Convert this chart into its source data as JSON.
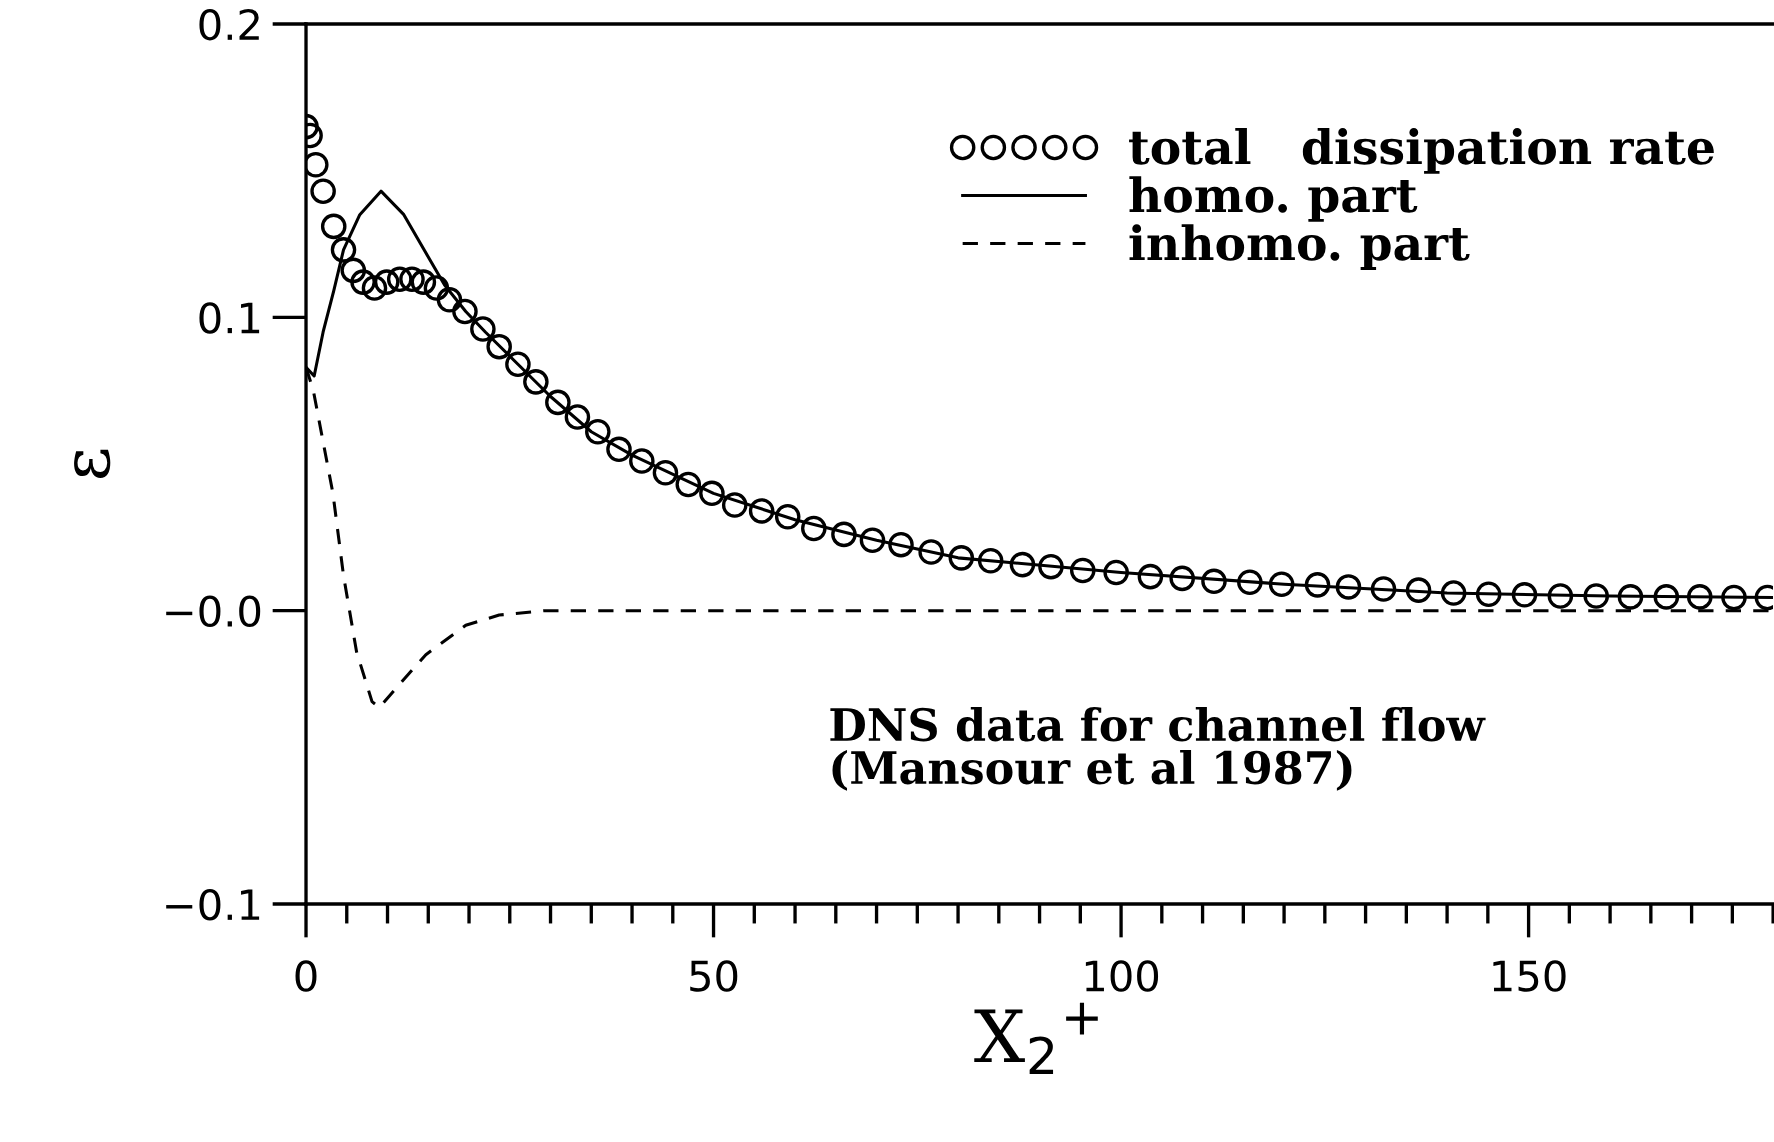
{
  "chart_data": {
    "type": "line",
    "xlabel": "X$_{2}$$^{+}$",
    "ylabel": "ε",
    "xlim": [
      0,
      180
    ],
    "xticks": [
      0,
      50,
      100,
      150
    ],
    "ylim": [
      -0.1,
      0.2
    ],
    "yticks": [
      {
        "value": -0.1,
        "label": "−0.1"
      },
      {
        "value": 0,
        "label": "−0.0"
      },
      0.1,
      0.2
    ],
    "legend": "top right",
    "grid": false,
    "annotations": [
      "DNS data for channel flow\n(Mansour et al 1987)"
    ],
    "series": [
      {
        "name": "total   dissipation rate",
        "type": "scatter",
        "marker": "circle",
        "color": "#000000",
        "x": [
          0,
          0.5,
          1.2,
          2.1,
          3.4,
          4.6,
          5.8,
          7.0,
          8.4,
          9.9,
          11.5,
          13.0,
          14.4,
          16.0,
          17.6,
          19.5,
          21.7,
          23.7,
          26.0,
          28.2,
          30.9,
          33.3,
          35.8,
          38.4,
          41.2,
          44.1,
          46.9,
          49.8,
          52.6,
          55.9,
          59.1,
          62.3,
          66.0,
          69.5,
          73.0,
          76.7,
          80.4,
          84.0,
          87.9,
          91.4,
          95.3,
          99.4,
          103.6,
          107.5,
          111.4,
          115.8,
          119.7,
          124.1,
          127.9,
          132.2,
          136.5,
          140.8,
          145.1,
          149.5,
          153.9,
          158.3,
          162.5,
          166.9,
          171.0,
          175.2,
          179.3
        ],
        "values": [
          0.165,
          0.162,
          0.152,
          0.143,
          0.131,
          0.123,
          0.116,
          0.112,
          0.11,
          0.112,
          0.113,
          0.113,
          0.112,
          0.11,
          0.106,
          0.102,
          0.096,
          0.09,
          0.084,
          0.078,
          0.071,
          0.066,
          0.061,
          0.055,
          0.051,
          0.047,
          0.043,
          0.04,
          0.036,
          0.034,
          0.032,
          0.028,
          0.026,
          0.024,
          0.0225,
          0.02,
          0.018,
          0.017,
          0.0157,
          0.015,
          0.0137,
          0.013,
          0.0116,
          0.011,
          0.01,
          0.0097,
          0.009,
          0.0088,
          0.0081,
          0.0074,
          0.007,
          0.006,
          0.0056,
          0.0054,
          0.005,
          0.005,
          0.0047,
          0.0047,
          0.0047,
          0.0045,
          0.0045
        ]
      },
      {
        "name": "homo. part",
        "type": "line",
        "line_style": "solid",
        "color": "#000000",
        "x": [
          0,
          1,
          2.1,
          3.4,
          4.6,
          6.6,
          9.2,
          12,
          14.7,
          17,
          19.6,
          22,
          26,
          30,
          35,
          40,
          50,
          60,
          70,
          80,
          100,
          120,
          140,
          160,
          180
        ],
        "values": [
          0.083,
          0.08,
          0.095,
          0.109,
          0.123,
          0.135,
          0.143,
          0.135,
          0.122,
          0.111,
          0.102,
          0.095,
          0.084,
          0.073,
          0.061,
          0.053,
          0.04,
          0.031,
          0.024,
          0.018,
          0.013,
          0.009,
          0.006,
          0.005,
          0.0045
        ]
      },
      {
        "name": "inhomo. part",
        "type": "line",
        "line_style": "dashed",
        "color": "#000000",
        "x": [
          0,
          0.9,
          3.3,
          4.6,
          6.2,
          8.1,
          9.0,
          11.5,
          14.7,
          19.6,
          23.7,
          29.3,
          40,
          60,
          100,
          140,
          180
        ],
        "values": [
          0.083,
          0.075,
          0.04,
          0.012,
          -0.014,
          -0.031,
          -0.033,
          -0.025,
          -0.015,
          -0.005,
          -0.0015,
          0.0,
          0.0,
          0.0,
          0.0,
          0.0,
          0.0
        ]
      }
    ]
  }
}
